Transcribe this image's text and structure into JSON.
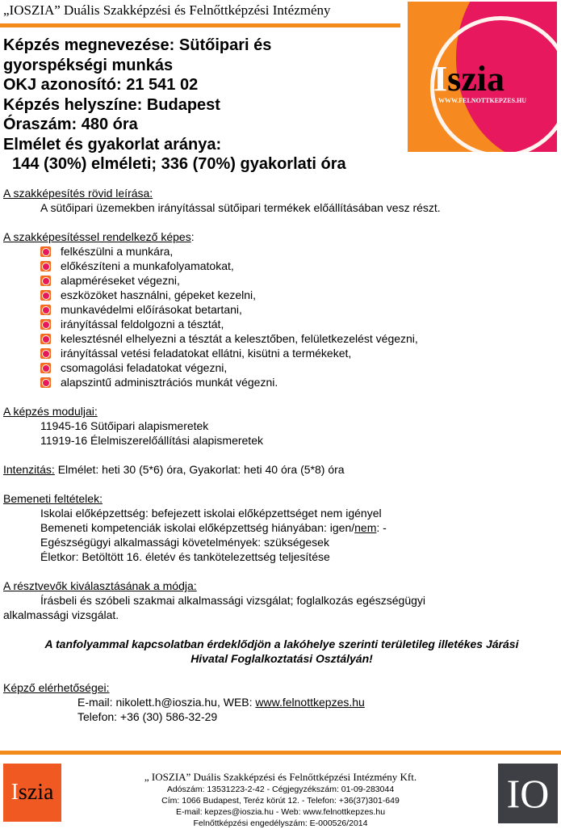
{
  "header": {
    "institution": "„IOSZIA” Duális Szakképzési és Felnőttképzési Intézmény",
    "logo_text": "IOSZIA",
    "logo_url": "WWW.FELNOTTKEPZES.HU"
  },
  "title_lines": [
    "Képzés megnevezése: Sütőipari és",
    "gyorspékségi munkás",
    "OKJ azonosító: 21 541 02",
    "Képzés helyszíne: Budapest",
    "Óraszám: 480 óra",
    "Elmélet és gyakorlat aránya:",
    "  144 (30%) elméleti; 336 (70%) gyakorlati óra"
  ],
  "description": {
    "heading": "A szakképesítés rövid leírása:",
    "text": "A sütőipari üzemekben irányítással sütőipari termékek előállításában vesz részt."
  },
  "skills": {
    "heading": "A szakképesítéssel rendelkező képes",
    "colon": ":",
    "items": [
      "felkészülni a munkára,",
      "előkészíteni a munkafolyamatokat,",
      "alapméréseket végezni,",
      "eszközöket használni, gépeket kezelni,",
      "munkavédelmi előírásokat betartani,",
      "irányítással feldolgozni a tésztát,",
      "kelesztésnél elhelyezni a tésztát a kelesztőben, felületkezelést végezni,",
      "irányítással vetési feladatokat ellátni, kisütni a termékeket,",
      "csomagolási feladatokat végezni,",
      "alapszintű adminisztrációs munkát végezni."
    ]
  },
  "modules": {
    "heading": "A képzés moduljai:",
    "items": [
      "11945-16 Sütőipari alapismeretek",
      "11919-16 Élelmiszerelőállítási alapismeretek"
    ]
  },
  "intensity": {
    "label": "Intenzitás:",
    "text": " Elmélet: heti 30 (5*6) óra, Gyakorlat: heti 40 óra (5*8) óra"
  },
  "prereq": {
    "heading": "Bemeneti feltételek:",
    "school": "Iskolai előképzettség: befejezett iskolai előképzettséget nem igényel",
    "comp_a": "Bemeneti kompetenciák iskolai előképzettség hiányában: igen/",
    "comp_nem": "nem",
    "comp_b": ": -",
    "health": "Egészségügyi alkalmassági követelmények: szükségesek",
    "age": "Életkor: Betöltött 16. életév és tankötelezettség teljesítése"
  },
  "selection": {
    "heading": "A résztvevők kiválasztásának a módja:",
    "line1": "Írásbeli és szóbeli szakmai alkalmassági vizsgálat; foglalkozás egészségügyi",
    "line2": "alkalmassági vizsgálat."
  },
  "notice": {
    "line1": "A tanfolyammal kapcsolatban érdeklődjön a lakóhelye szerinti területileg illetékes Járási",
    "line2": "Hivatal Foglalkoztatási Osztályán!"
  },
  "contact": {
    "heading": "Képző elérhetőségei:",
    "email_prefix": "E-mail: nikolett.h@ioszia.hu, WEB: ",
    "web": "www.felnottkepzes.hu",
    "phone": "Telefon: +36 (30) 586-32-29"
  },
  "footer": {
    "name": "„ IOSZIA” Duális Szakképzési és Felnőttképzési Intézmény Kft.",
    "tax": "Adószám: 13531223-2-42 - Cégjegyzékszám: 01-09-283044",
    "address": "Cím: 1066 Budapest, Teréz körút 12. - Telefon: +36(37)301-649",
    "email": "E-mail: kepzes@ioszia.hu - Web: www.felnottkepzes.hu",
    "license": "Felnőttképzési engedélyszám: E-000526/2014",
    "left_logo": "Ioszia",
    "right_logo": "IO"
  },
  "colors": {
    "accent_orange": "#f28a1c",
    "logo_pink": "#e8185f",
    "footer_dark": "#3d3f45"
  }
}
